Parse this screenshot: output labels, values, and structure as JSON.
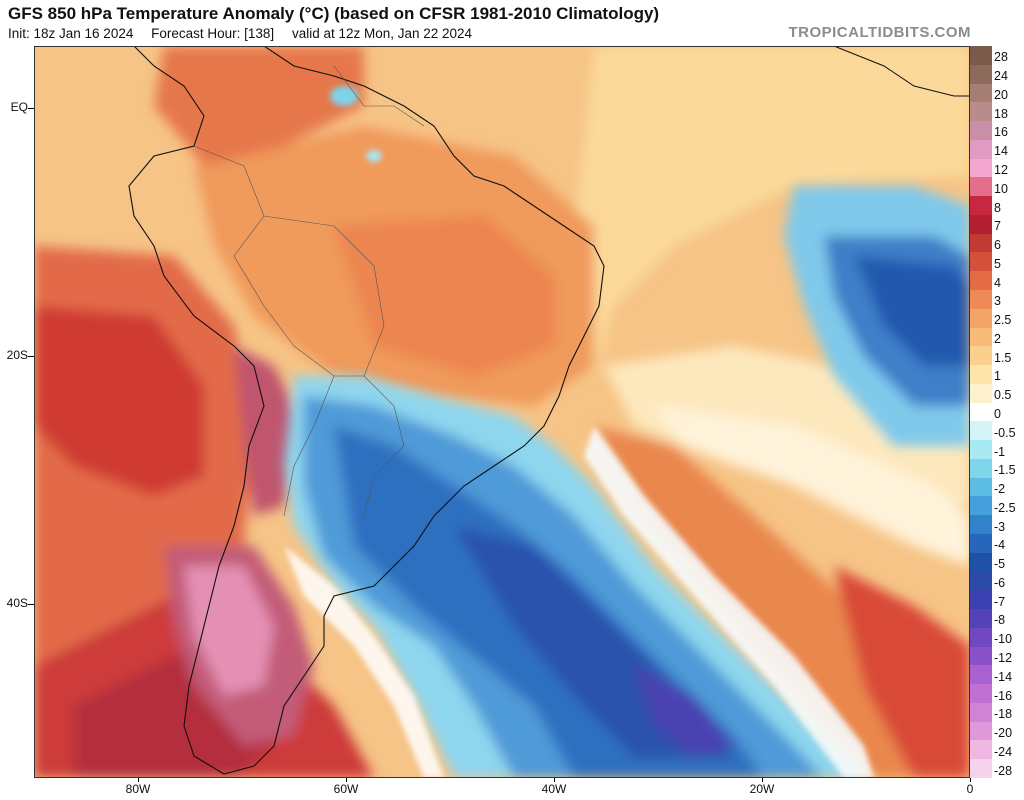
{
  "header": {
    "title": "GFS 850 hPa Temperature Anomaly (°C) (based on CFSR 1981-2010 Climatology)",
    "init": "Init: 18z Jan 16 2024",
    "forecast_hour": "Forecast Hour: [138]",
    "valid": "valid at 12z Mon, Jan 22 2024",
    "brand": "TROPICALTIDBITS.COM"
  },
  "axes": {
    "lat_labels": [
      {
        "label": "EQ",
        "lat": 0
      },
      {
        "label": "20S",
        "lat": -20
      },
      {
        "label": "40S",
        "lat": -40
      }
    ],
    "lon_labels": [
      {
        "label": "80W",
        "lon": -80
      },
      {
        "label": "60W",
        "lon": -60
      },
      {
        "label": "40W",
        "lon": -40
      },
      {
        "label": "20W",
        "lon": -20
      },
      {
        "label": "0",
        "lon": 0
      }
    ]
  },
  "legend": {
    "labels": [
      "28",
      "24",
      "20",
      "18",
      "16",
      "14",
      "12",
      "10",
      "8",
      "7",
      "6",
      "5",
      "4",
      "3",
      "2.5",
      "2",
      "1.5",
      "1",
      "0.5",
      "0",
      "-0.5",
      "-1",
      "-1.5",
      "-2",
      "-2.5",
      "-3",
      "-4",
      "-5",
      "-6",
      "-7",
      "-8",
      "-10",
      "-12",
      "-14",
      "-16",
      "-18",
      "-20",
      "-24",
      "-28"
    ],
    "colors": [
      "#7a5a4a",
      "#8d6a5c",
      "#a57e73",
      "#b98c8c",
      "#c88fa7",
      "#e09bc2",
      "#f3a7cf",
      "#e46f8a",
      "#c8283f",
      "#b11f30",
      "#c33a32",
      "#d3513a",
      "#e36b45",
      "#ee8a56",
      "#f4a466",
      "#f8bc78",
      "#fbd08c",
      "#fde4a8",
      "#fdf1cd",
      "#ffffff",
      "#d4f4f8",
      "#a8eaf1",
      "#7fd6ea",
      "#5cbce4",
      "#459fda",
      "#3282cb",
      "#2667bb",
      "#1e52a6",
      "#2a4aa8",
      "#3c3fb0",
      "#5541b8",
      "#7048c0",
      "#8a52c8",
      "#a862cf",
      "#c070d3",
      "#d082d4",
      "#df98d9",
      "#efb8e2",
      "#f6d2ec"
    ]
  },
  "map_legend": {
    "region": "South America and South Atlantic",
    "lat_range": [
      -54,
      5
    ],
    "lon_range": [
      -90,
      0
    ],
    "features": [
      "positive anomaly over Brazil and equatorial Atlantic",
      "strong positive anomaly along Andes and Patagonia",
      "negative anomaly over SE South America and South Atlantic trough"
    ]
  }
}
